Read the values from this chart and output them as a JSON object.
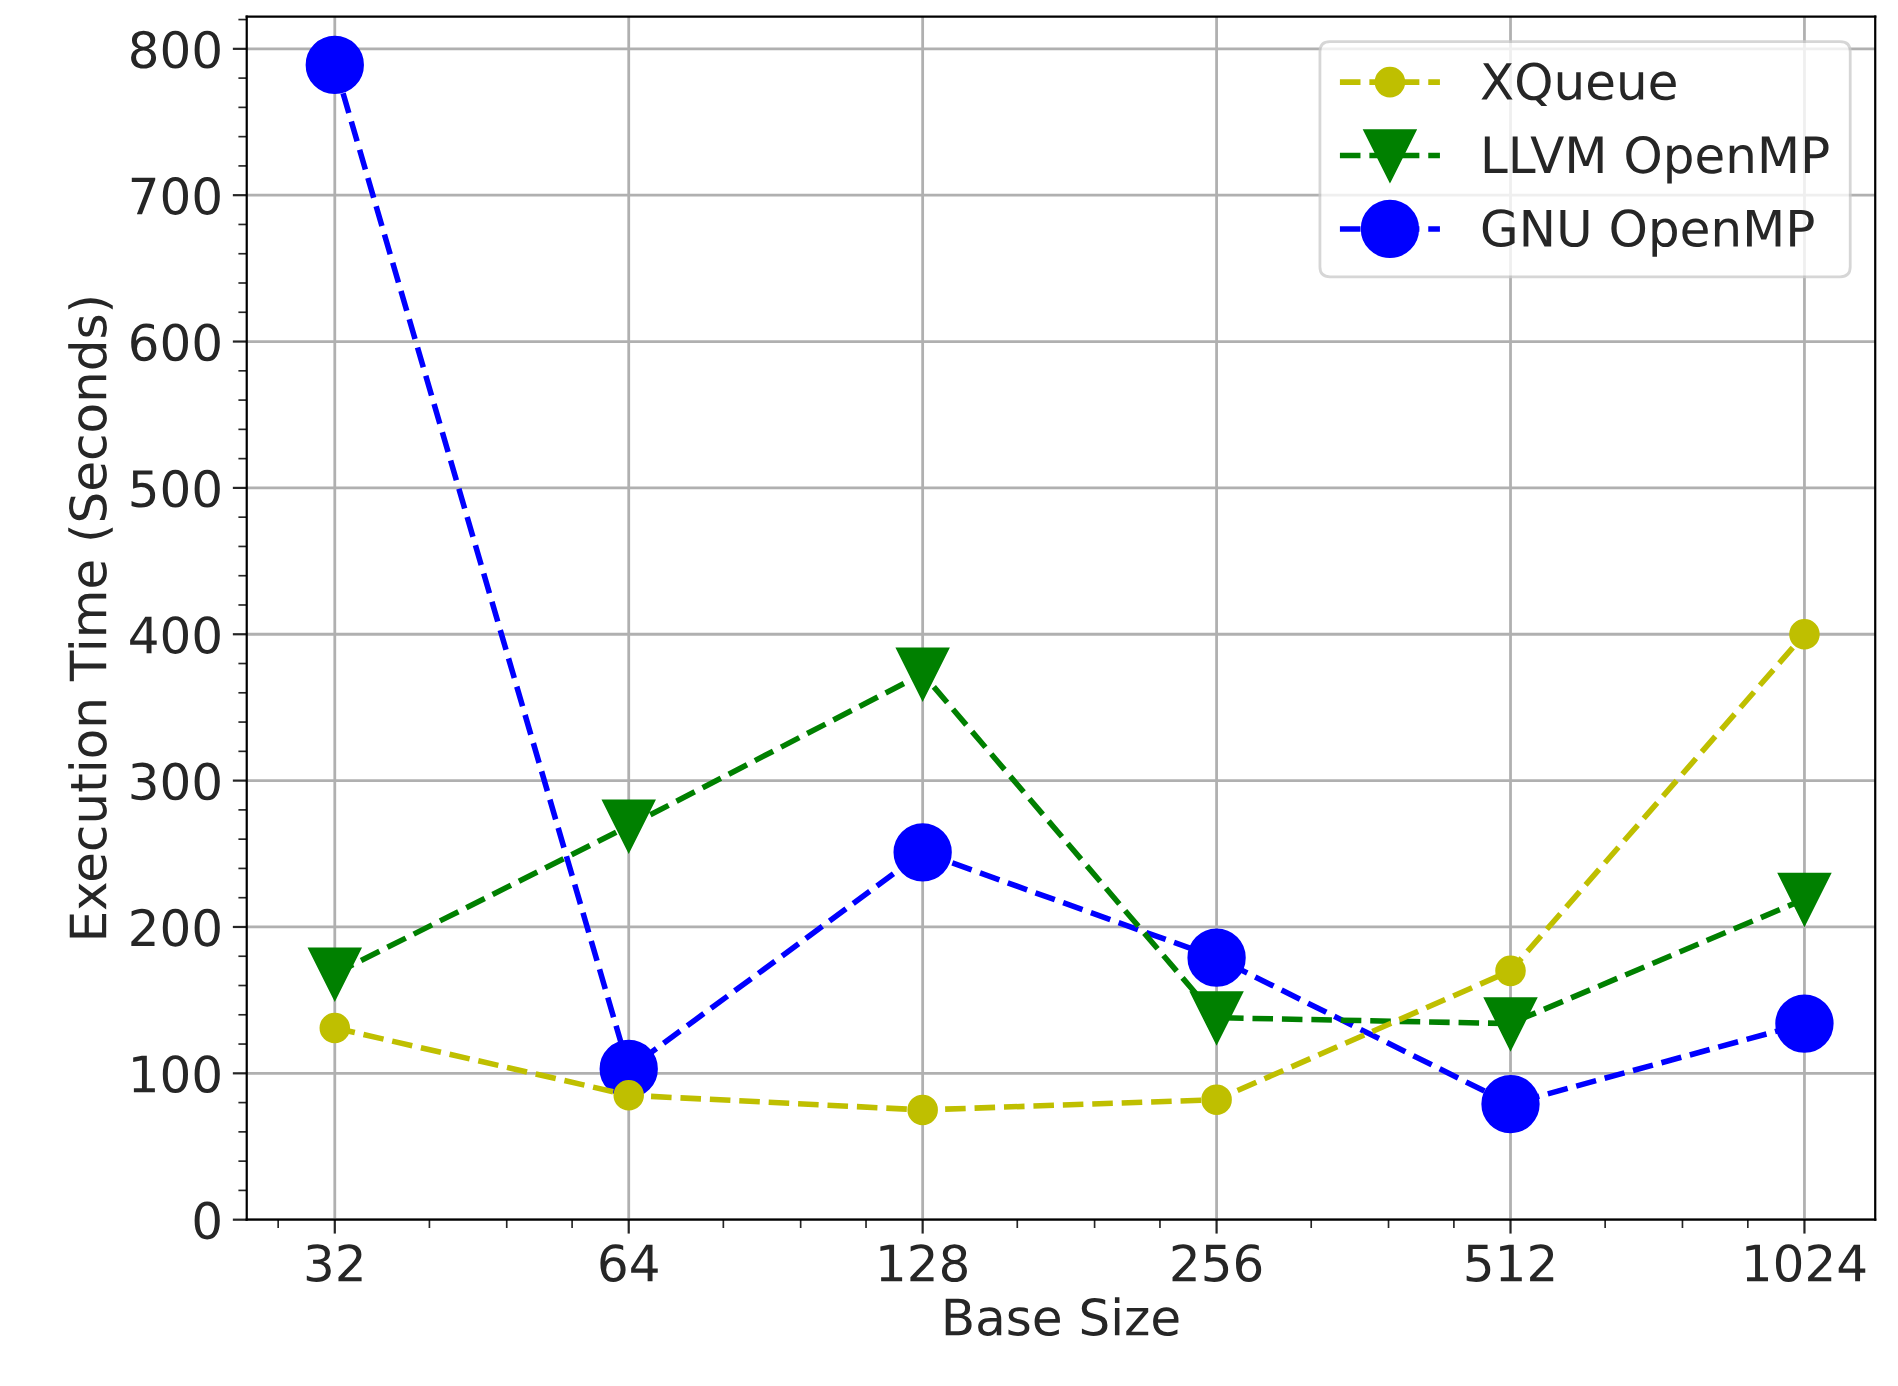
{
  "chart_data": {
    "type": "line",
    "xlabel": "Base Size",
    "ylabel": "Execution Time (Seconds)",
    "x": [
      32,
      64,
      128,
      256,
      512,
      1024
    ],
    "log": "x",
    "xlim": [
      26,
      1210
    ],
    "xticks": [
      32,
      64,
      128,
      256,
      512,
      1024
    ],
    "ylim": [
      0,
      822
    ],
    "yticks": [
      0,
      100,
      200,
      300,
      400,
      500,
      600,
      700,
      800
    ],
    "grid": true,
    "legend": "top right",
    "line_style": "dashed",
    "series": [
      {
        "name": "XQueue",
        "color": "#bfbf00",
        "marker": "circle",
        "values": [
          131,
          85,
          75,
          82,
          170,
          400
        ]
      },
      {
        "name": "LLVM OpenMP",
        "color": "#008000",
        "marker": "triangle",
        "values": [
          168,
          269,
          373,
          138,
          134,
          219
        ]
      },
      {
        "name": "GNU OpenMP",
        "color": "#0000ff",
        "marker": "circle",
        "values": [
          789,
          103,
          251,
          179,
          79,
          134
        ]
      }
    ]
  }
}
